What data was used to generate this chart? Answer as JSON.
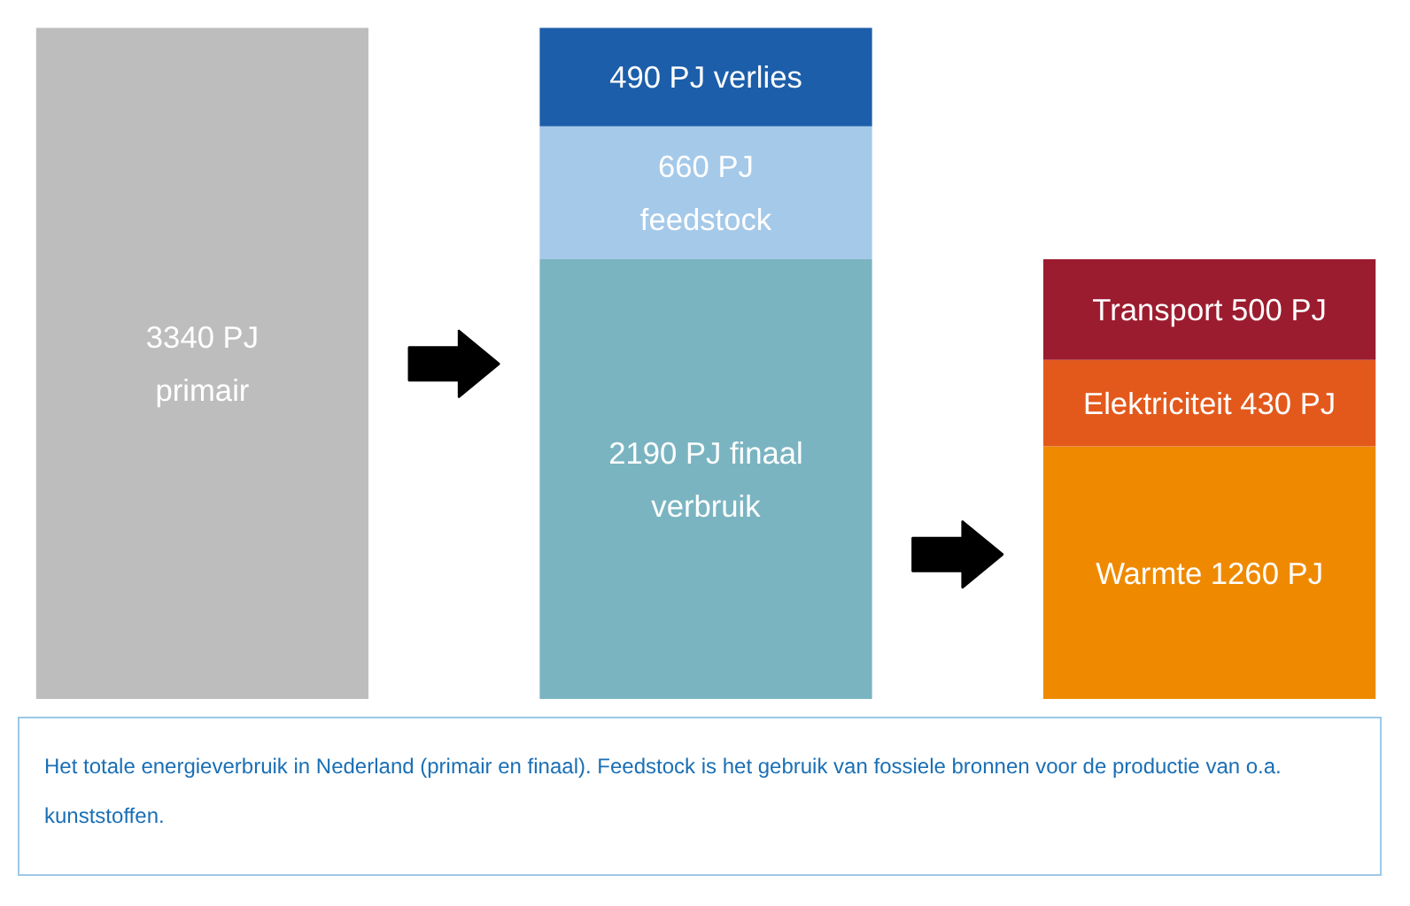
{
  "chart_data": {
    "type": "bar",
    "stacked": true,
    "categories": [
      null,
      null,
      null
    ],
    "series": [
      {
        "colors": [
          "#bdbdbd",
          "#7ab4c1",
          "#ef8a00"
        ],
        "values": [
          3340,
          2190,
          1260
        ],
        "value_labels": [
          "3340 PJ\nprimair",
          "2190 PJ finaal\nverbruik",
          "Warmte 1260 PJ"
        ]
      },
      {
        "colors": [
          "#bdbdbd",
          "#a5c9e9",
          "#e3591c"
        ],
        "values": [
          null,
          660,
          430
        ],
        "value_labels": [
          null,
          "660 PJ\nfeedstock",
          "Elektriciteit 430 PJ"
        ]
      },
      {
        "colors": [
          "#bdbdbd",
          "#1c5ea9",
          "#9c1c2f"
        ],
        "values": [
          null,
          490,
          500
        ],
        "value_labels": [
          null,
          "490 PJ verlies",
          "Transport 500 PJ"
        ]
      }
    ],
    "annotations": [
      "Het totale energieverbruik in Nederland (primair en finaal). Feedstock is het gebruik van fossiele bronnen voor de productie van o.a. kunststoffen."
    ]
  }
}
